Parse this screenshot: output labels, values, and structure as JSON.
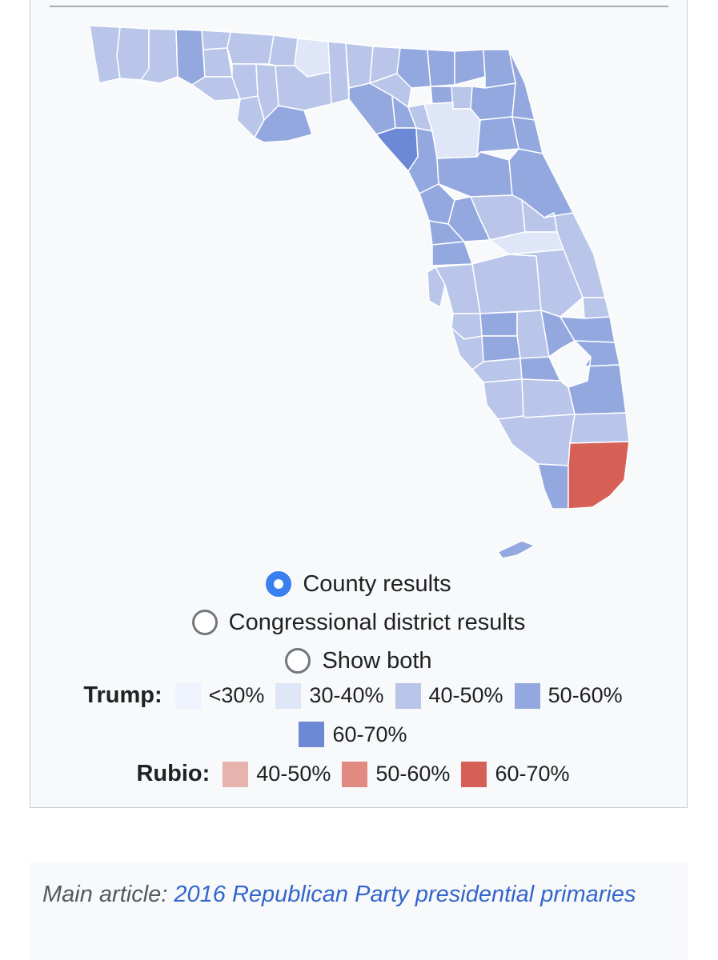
{
  "map": {
    "colors": {
      "trump_lt30": "#eef3ff",
      "trump_30_40": "#dfe6f7",
      "trump_40_50": "#b9c6ea",
      "trump_50_60": "#93a8df",
      "trump_60_70": "#6d89d5",
      "rubio_40_50": "#e8b3ae",
      "rubio_50_60": "#e08a82",
      "rubio_60_70": "#d65f56",
      "border": "#ffffff"
    }
  },
  "controls": {
    "options": [
      {
        "label": "County results",
        "selected": true
      },
      {
        "label": "Congressional district results",
        "selected": false
      },
      {
        "label": "Show both",
        "selected": false
      }
    ]
  },
  "legend": {
    "trump": {
      "label": "Trump:",
      "items": [
        {
          "range": "<30%",
          "color": "#eef3ff"
        },
        {
          "range": "30-40%",
          "color": "#dfe6f7"
        },
        {
          "range": "40-50%",
          "color": "#b9c6ea"
        },
        {
          "range": "50-60%",
          "color": "#93a8df"
        },
        {
          "range": "60-70%",
          "color": "#6d89d5"
        }
      ]
    },
    "rubio": {
      "label": "Rubio:",
      "items": [
        {
          "range": "40-50%",
          "color": "#e8b3ae"
        },
        {
          "range": "50-60%",
          "color": "#e08a82"
        },
        {
          "range": "60-70%",
          "color": "#d65f56"
        }
      ]
    }
  },
  "hatnote": {
    "prefix": "Main article: ",
    "link_text": "2016 Republican Party presidential primaries"
  }
}
